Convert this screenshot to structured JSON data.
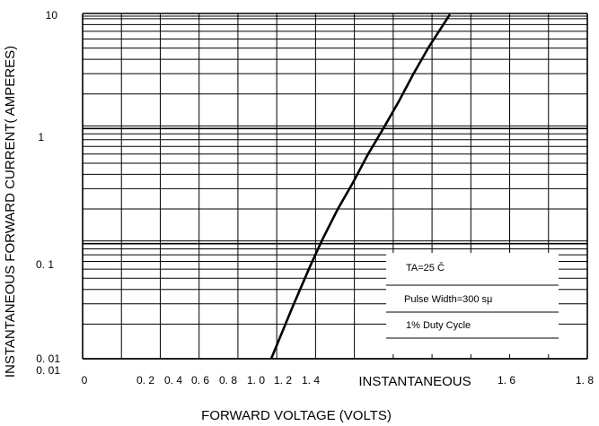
{
  "chart_data": {
    "type": "line",
    "title": "",
    "xlabel": "FORWARD VOLTAGE (VOLTS)",
    "ylabel": "INSTANTANEOUS FORWARD CURRENT( AMPERES)",
    "x_scale": "linear",
    "y_scale": "log",
    "xlim": [
      0.0,
      1.8
    ],
    "ylim": [
      0.01,
      10
    ],
    "grid": true,
    "legend": "none",
    "line_color": "#000000",
    "x_tick_labels": [
      "0",
      "0. 2",
      "0. 4",
      "0. 6",
      "0. 8",
      "1. 0",
      "1. 2",
      "1. 4",
      "INSTANTANEOUS",
      "1. 6",
      "1. 8"
    ],
    "y_tick_labels": [
      "10",
      "1",
      "0. 1",
      "0. 01",
      "0. 01"
    ],
    "series": [
      {
        "x": [
          0.83,
          0.9,
          0.96,
          1.0,
          1.05,
          1.1,
          1.15,
          1.2,
          1.25,
          1.3,
          1.35,
          1.42
        ],
        "y": [
          0.01,
          0.028,
          0.065,
          0.11,
          0.2,
          0.34,
          0.6,
          1.0,
          1.7,
          3.0,
          5.1,
          9.8
        ]
      }
    ],
    "annotations": [
      "TA=25 Č",
      "Pulse Width=300  sμ",
      "1% Duty Cycle"
    ]
  }
}
